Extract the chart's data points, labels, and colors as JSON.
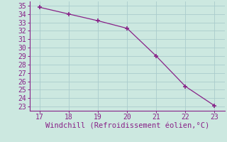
{
  "x": [
    17,
    18,
    19,
    20,
    21,
    22,
    23
  ],
  "y": [
    34.8,
    34.0,
    33.2,
    32.3,
    29.0,
    25.4,
    23.1
  ],
  "line_color": "#882288",
  "marker": "+",
  "marker_size": 5,
  "marker_linewidth": 1.2,
  "linewidth": 0.9,
  "xlabel": "Windchill (Refroidissement éolien,°C)",
  "xlabel_color": "#882288",
  "xlim": [
    16.65,
    23.35
  ],
  "ylim": [
    22.5,
    35.5
  ],
  "xticks": [
    17,
    18,
    19,
    20,
    21,
    22,
    23
  ],
  "yticks": [
    23,
    24,
    25,
    26,
    27,
    28,
    29,
    30,
    31,
    32,
    33,
    34,
    35
  ],
  "bg_color": "#cce8e0",
  "grid_color": "#aacccc",
  "spine_color": "#882288",
  "tick_color": "#882288",
  "tick_label_color": "#882288",
  "xlabel_fontsize": 7.5,
  "tick_fontsize": 7.0,
  "font_family": "monospace"
}
